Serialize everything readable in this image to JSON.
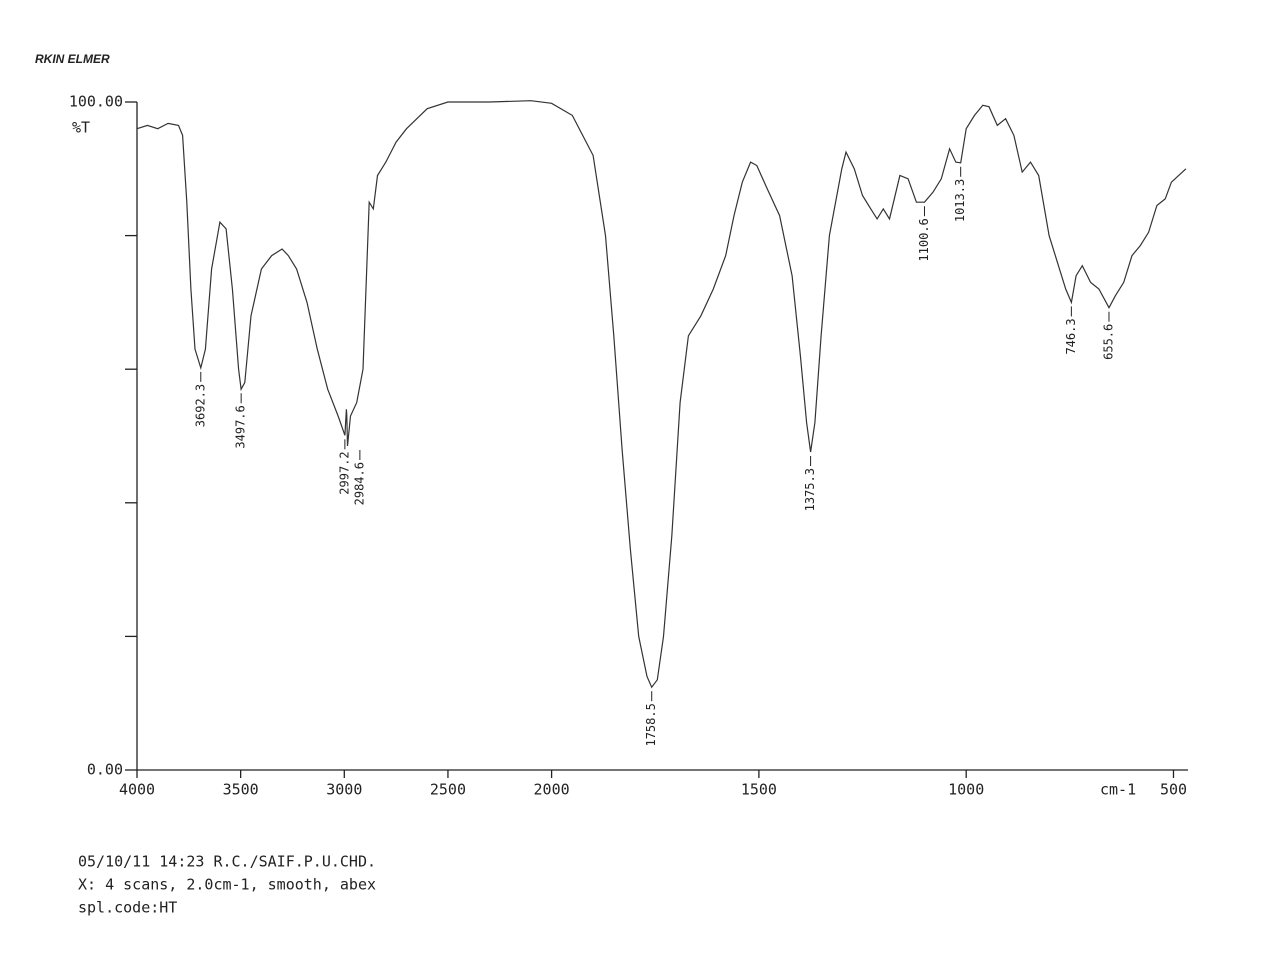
{
  "chart_data": {
    "type": "line",
    "title": "RKIN ELMER",
    "ylabel": "%T",
    "xlabel": "cm-1",
    "color": "#333333",
    "x_scale_break": 2000,
    "xlim": [
      4000,
      465
    ],
    "xticks": [
      4000,
      3500,
      3000,
      2500,
      2000,
      1500,
      1000,
      500
    ],
    "ylim": [
      0,
      100
    ],
    "yticks": [
      {
        "value": 0,
        "label": "0.00"
      },
      {
        "value": 20,
        "label": null
      },
      {
        "value": 40,
        "label": null
      },
      {
        "value": 60,
        "label": null
      },
      {
        "value": 80,
        "label": null
      },
      {
        "value": 100,
        "label": "100.00"
      }
    ],
    "x": [
      4000,
      3950,
      3900,
      3850,
      3800,
      3780,
      3760,
      3740,
      3720,
      3692.3,
      3670,
      3640,
      3600,
      3570,
      3540,
      3510,
      3497.6,
      3480,
      3450,
      3400,
      3350,
      3300,
      3270,
      3230,
      3180,
      3130,
      3080,
      3030,
      2997.2,
      2990,
      2988,
      2984.6,
      2970,
      2940,
      2910,
      2880,
      2860,
      2840,
      2800,
      2750,
      2700,
      2600,
      2500,
      2300,
      2100,
      2000,
      1950,
      1900,
      1870,
      1850,
      1830,
      1810,
      1790,
      1770,
      1758.5,
      1745,
      1730,
      1710,
      1690,
      1670,
      1640,
      1610,
      1580,
      1560,
      1540,
      1520,
      1505,
      1480,
      1450,
      1420,
      1400,
      1385,
      1375.3,
      1365,
      1350,
      1330,
      1300,
      1290,
      1270,
      1250,
      1230,
      1215,
      1200,
      1185,
      1160,
      1140,
      1120,
      1100.6,
      1080,
      1060,
      1040,
      1025,
      1013.3,
      1000,
      980,
      960,
      945,
      925,
      905,
      885,
      865,
      845,
      825,
      800,
      780,
      760,
      746.3,
      735,
      720,
      700,
      680,
      655.6,
      640,
      620,
      600,
      580,
      560,
      540,
      520,
      505,
      470
    ],
    "values": [
      96,
      96.5,
      96,
      96.8,
      96.5,
      95,
      85,
      72,
      63,
      60.2,
      63,
      75,
      82,
      81,
      72,
      60,
      57,
      58,
      68,
      75,
      77,
      78,
      77,
      75,
      70,
      63,
      57,
      53,
      50.1,
      54,
      53,
      48.5,
      53,
      55,
      60,
      85,
      84,
      89,
      91,
      94,
      96,
      99,
      100,
      100,
      100.2,
      99.8,
      98,
      92,
      80,
      65,
      48,
      33,
      20,
      14,
      12.4,
      13.5,
      20,
      35,
      55,
      65,
      68,
      72,
      77,
      83,
      88,
      91,
      90.5,
      87,
      83,
      74,
      62,
      52,
      47.6,
      52,
      65,
      80,
      90,
      92.5,
      90,
      86,
      84,
      82.5,
      84,
      82.5,
      89,
      88.5,
      85,
      85,
      86.5,
      88.5,
      93,
      91,
      90.9,
      96,
      98,
      99.5,
      99.3,
      96.5,
      97.5,
      95,
      89.5,
      91,
      89,
      80,
      76,
      72,
      70,
      74,
      75.5,
      73,
      72,
      69.2,
      71,
      73,
      77,
      78.5,
      80.5,
      84.5,
      85.5,
      88,
      90
    ],
    "peaks": {
      "x": [
        3692.3,
        3497.6,
        2997.2,
        2984.6,
        1758.5,
        1375.3,
        1100.6,
        1013.3,
        746.3,
        655.6
      ],
      "y": [
        60.2,
        57,
        50.1,
        48.5,
        12.4,
        47.6,
        85,
        90.9,
        70,
        69.2
      ]
    },
    "notes": [
      "05/10/11 14:23 R.C./SAIF.P.U.CHD.",
      "X: 4 scans, 2.0cm-1, smooth, abex",
      "spl.code:HT"
    ]
  }
}
